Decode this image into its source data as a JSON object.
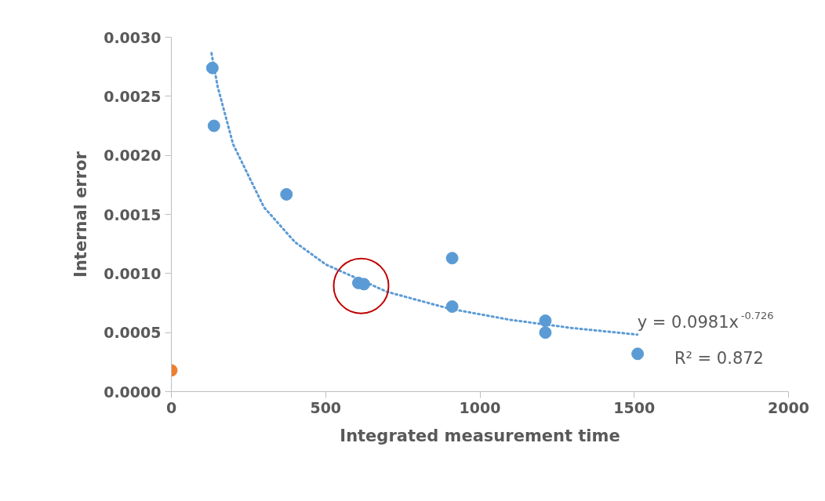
{
  "chart_data": {
    "type": "scatter",
    "xlabel": "Integrated measurement time",
    "ylabel": "Internal error",
    "xlim": [
      0,
      2000
    ],
    "xticks": [
      0,
      500,
      1000,
      1500,
      2000
    ],
    "ylim": [
      0,
      0.003
    ],
    "yticks": [
      {
        "value": 0,
        "label": "0.0000"
      },
      {
        "value": 0.0005,
        "label": "0.0005"
      },
      {
        "value": 0.001,
        "label": "0.0010"
      },
      {
        "value": 0.0015,
        "label": "0.0015"
      },
      {
        "value": 0.002,
        "label": "0.0020"
      },
      {
        "value": 0.0025,
        "label": "0.0025"
      },
      {
        "value": 0.003,
        "label": "0.0030"
      }
    ],
    "grid": false,
    "marker": "circle",
    "series": [
      {
        "type": "scatter",
        "color": "#5b9bd5",
        "x": [
          133,
          138,
          373,
          606,
          624,
          910,
          910,
          1212,
          1212,
          1511
        ],
        "values": [
          0.00274,
          0.00225,
          0.00167,
          0.00092,
          0.00091,
          0.00113,
          0.00072,
          0.0006,
          0.0005,
          0.00032
        ]
      },
      {
        "type": "scatter",
        "color": "#ed7d31",
        "x": [
          0
        ],
        "values": [
          0.00018
        ]
      },
      {
        "type": "line",
        "color": "#5b9bd5",
        "line_style": "dotted",
        "marker": "none",
        "x": [
          130,
          150,
          200,
          300,
          400,
          500,
          700,
          900,
          1100,
          1300,
          1510
        ],
        "values": [
          0.002865,
          0.002582,
          0.002095,
          0.001561,
          0.001267,
          0.001077,
          0.000844,
          0.000703,
          0.000607,
          0.000538,
          0.000483
        ]
      }
    ],
    "annotations": [
      "y = 0.0981x$^{-0.726}$",
      "R² = 0.872"
    ]
  }
}
